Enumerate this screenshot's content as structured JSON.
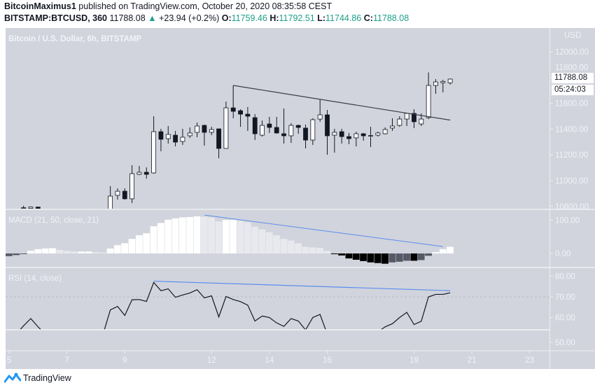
{
  "header": {
    "author": "BitcoinMaximus1",
    "published": "published on TradingView.com, October 20, 2020 08:35:58 CEST",
    "symbol": "BITSTAMP:BTCUSD, 360",
    "last": "11788.08",
    "change": "+23.94 (+0.2%)",
    "o_label": "O:",
    "o": "11759.46",
    "h_label": "H:",
    "h": "11792.51",
    "l_label": "L:",
    "l": "11744.86",
    "c_label": "C:",
    "c": "11788.08",
    "up_icon": "triangle-up-icon"
  },
  "chart": {
    "title": "Bitcoin / U.S. Dollar, 6h, BITSTAMP",
    "currency": "USD",
    "price_label": "11788.08",
    "countdown": "05:24:03",
    "macd_label": "MACD (21, 50, close, 21)",
    "rsi_label": "RSI (14, close)",
    "price_ticks": [
      "12000.00",
      "11800.00",
      "11600.00",
      "11400.00",
      "11200.00",
      "11000.00",
      "10800.00"
    ],
    "macd_ticks": [
      "100.00",
      "0.00"
    ],
    "rsi_ticks": [
      "80.00",
      "70.00",
      "60.00",
      "50.00"
    ],
    "time_ticks": [
      "5",
      "7",
      "9",
      "12",
      "14",
      "16",
      "19",
      "21",
      "23"
    ]
  },
  "colors": {
    "background": "#d1d4dc",
    "candle_dark": "#131722",
    "candle_light": "#ffffff",
    "trendline_blue": "#5b8def",
    "positive_green": "#1e9e8a",
    "hist_up_strong": "#ffffff",
    "hist_up_weak": "#e8e9ee",
    "hist_down_strong": "#000000",
    "hist_down_weak": "#565a66"
  },
  "footer": {
    "brand": "TradingView"
  },
  "chart_data": {
    "type": "candlestick",
    "start": "Oct 4 18:00",
    "interval": "6h",
    "price_ylim": [
      10800,
      12000
    ],
    "candles": [
      null,
      null,
      null,
      [
        10790,
        10805,
        10780,
        10790
      ],
      [
        10785,
        10800,
        10780,
        10795
      ],
      [
        10795,
        10798,
        10780,
        10785
      ],
      null,
      null,
      null,
      null,
      null,
      null,
      null,
      null,
      null,
      [
        10780,
        10957,
        10750,
        10880
      ],
      [
        10886,
        10940,
        10853,
        10918
      ],
      [
        10918,
        10940,
        10853,
        10859
      ],
      [
        10859,
        11120,
        10826,
        11054
      ],
      [
        11049,
        11114,
        11043,
        11065
      ],
      [
        11065,
        11103,
        11016,
        11049
      ],
      [
        11060,
        11500,
        11054,
        11380
      ],
      [
        11380,
        11402,
        11228,
        11321
      ],
      [
        11326,
        11424,
        11288,
        11359
      ],
      [
        11353,
        11386,
        11266,
        11299
      ],
      [
        11304,
        11402,
        11277,
        11337
      ],
      [
        11348,
        11413,
        11332,
        11370
      ],
      [
        11375,
        11451,
        11337,
        11424
      ],
      [
        11429,
        11435,
        11272,
        11375
      ],
      [
        11375,
        11418,
        11353,
        11397
      ],
      [
        11402,
        11402,
        11174,
        11250
      ],
      [
        11250,
        11614,
        11250,
        11565
      ],
      [
        11565,
        11739,
        11484,
        11538
      ],
      [
        11543,
        11554,
        11418,
        11516
      ],
      [
        11516,
        11571,
        11386,
        11500
      ],
      [
        11489,
        11516,
        11315,
        11364
      ],
      [
        11353,
        11467,
        11342,
        11429
      ],
      [
        11440,
        11495,
        11370,
        11413
      ],
      [
        11413,
        11495,
        11364,
        11370
      ],
      [
        11364,
        11560,
        11288,
        11348
      ],
      [
        11348,
        11446,
        11293,
        11429
      ],
      [
        11429,
        11435,
        11364,
        11413
      ],
      [
        11408,
        11435,
        11250,
        11315
      ],
      [
        11315,
        11484,
        11277,
        11473
      ],
      [
        11478,
        11630,
        11457,
        11511
      ],
      [
        11511,
        11549,
        11201,
        11348
      ],
      [
        11353,
        11402,
        11217,
        11375
      ],
      [
        11380,
        11402,
        11288,
        11342
      ],
      [
        11342,
        11370,
        11283,
        11326
      ],
      [
        11332,
        11380,
        11266,
        11364
      ],
      [
        11364,
        11370,
        11310,
        11348
      ],
      [
        11348,
        11418,
        11261,
        11350
      ],
      [
        11353,
        11380,
        11342,
        11370
      ],
      [
        11364,
        11413,
        11359,
        11397
      ],
      [
        11408,
        11484,
        11386,
        11424
      ],
      [
        11429,
        11500,
        11418,
        11478
      ],
      [
        11478,
        11522,
        11424,
        11522
      ],
      [
        11522,
        11554,
        11408,
        11457
      ],
      [
        11440,
        11522,
        11424,
        11478
      ],
      [
        11489,
        11840,
        11478,
        11739
      ],
      [
        11739,
        11788,
        11674,
        11766
      ],
      [
        11760,
        11783,
        11685,
        11770
      ],
      [
        11759.46,
        11792.51,
        11744.86,
        11788.08
      ]
    ],
    "macd_histogram": [
      -13,
      -8,
      -5,
      -1,
      8,
      13,
      15,
      16,
      11,
      8,
      6,
      6,
      6,
      4,
      3,
      15,
      25,
      31,
      44,
      55,
      61,
      82,
      92,
      102,
      106,
      109,
      110,
      112,
      111,
      109,
      97,
      101,
      101,
      98,
      94,
      81,
      73,
      64,
      55,
      44,
      39,
      31,
      20,
      18,
      17,
      8,
      -1,
      -6,
      -15,
      -19,
      -23,
      -27,
      -29,
      -31,
      -27,
      -25,
      -22,
      -22,
      -20,
      -7,
      4,
      13,
      20
    ],
    "macd_ylim": [
      -40,
      120
    ],
    "rsi": [
      null,
      null,
      52,
      56,
      59.5,
      55.5,
      52,
      null,
      null,
      null,
      null,
      null,
      null,
      null,
      52,
      63.7,
      65.4,
      61,
      68.6,
      68.7,
      67.8,
      77,
      73,
      73.9,
      69.8,
      70.9,
      71.9,
      73.5,
      69.5,
      70.5,
      60.3,
      70.2,
      68.7,
      67.7,
      66,
      58.3,
      60.7,
      60,
      57.4,
      55.7,
      59.5,
      58.3,
      54,
      60,
      61.5,
      52,
      null,
      null,
      null,
      null,
      null,
      null,
      53,
      55.5,
      57,
      60,
      62.5,
      56.6,
      58.2,
      70,
      71.2,
      71.2,
      72
    ],
    "rsi_ylim": [
      45,
      82
    ],
    "trendlines": {
      "price": [
        {
          "t": "Oct 12 18:00",
          "v": 11739
        },
        {
          "t": "Oct 20 06:00",
          "v": 11470
        }
      ],
      "macd": [
        {
          "t": "Oct 11 18:00",
          "v": 116
        },
        {
          "t": "Oct 20 00:00",
          "v": 21
        }
      ],
      "rsi": [
        {
          "t": "Oct 10 00:00",
          "v": 77.6
        },
        {
          "t": "Oct 20 06:00",
          "v": 73
        }
      ]
    }
  }
}
